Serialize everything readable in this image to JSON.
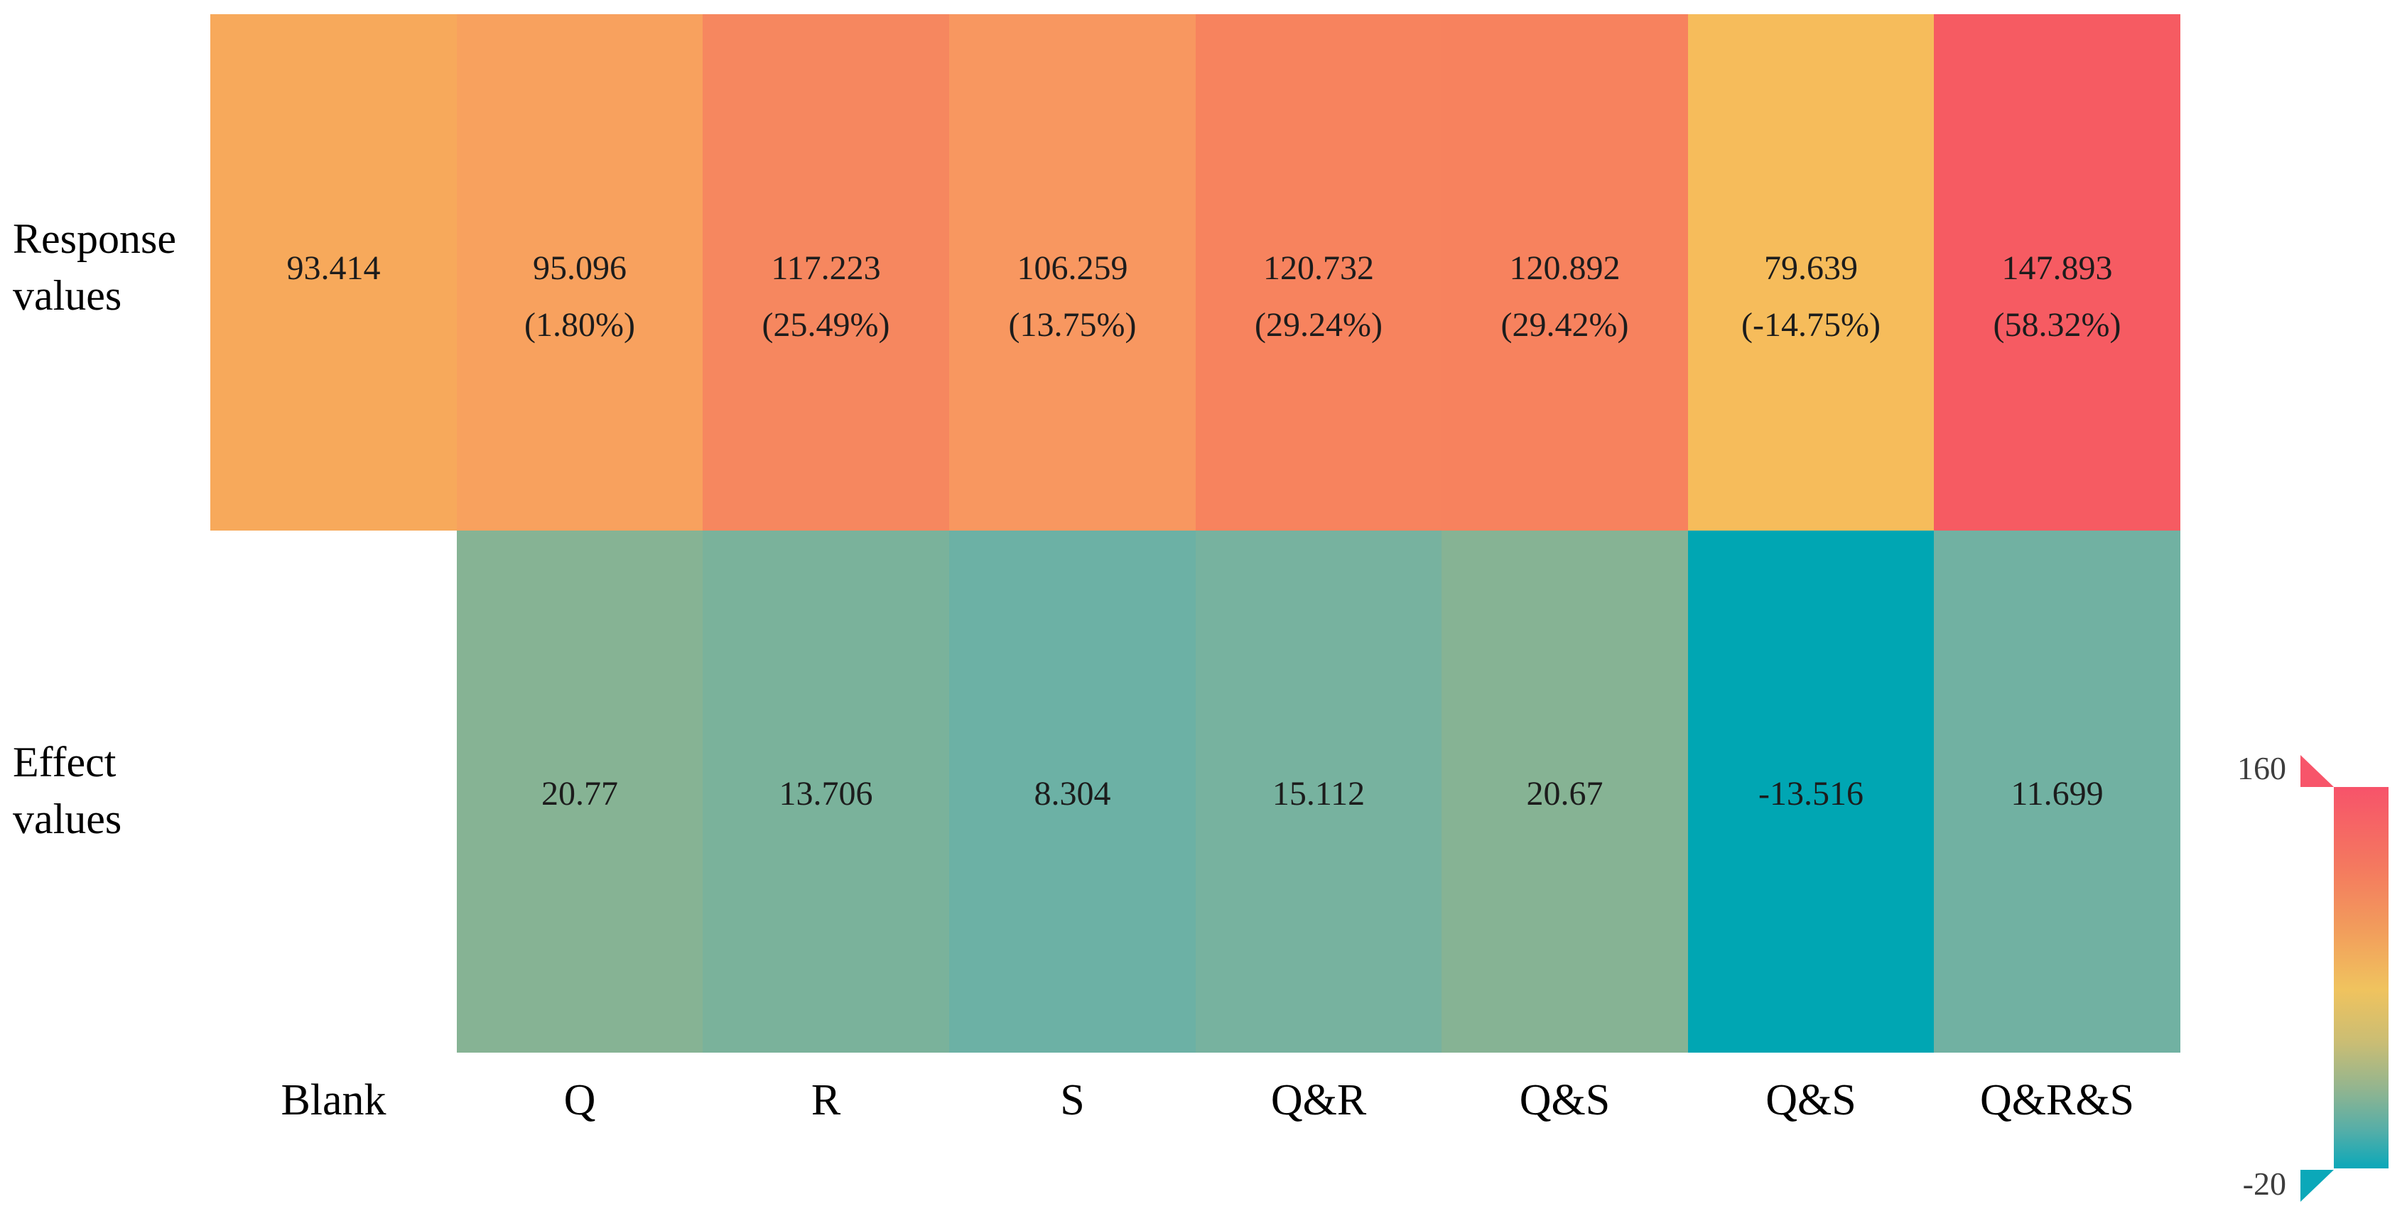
{
  "figure": {
    "background": "#ffffff",
    "text_color": "#1c1c1c"
  },
  "chart_data": {
    "type": "heatmap",
    "x_categories": [
      "Blank",
      "Q",
      "R",
      "S",
      "Q&R",
      "Q&S",
      "Q&S",
      "Q&R&S"
    ],
    "y_categories": [
      "Response values",
      "Effect values"
    ],
    "y_label_lines": [
      [
        "Response",
        "values"
      ],
      [
        "Effect",
        "values"
      ]
    ],
    "color_scale": {
      "min": -20,
      "max": 160
    },
    "series": [
      {
        "name": "Response values",
        "values": [
          93.414,
          95.096,
          117.223,
          106.259,
          120.732,
          120.892,
          79.639,
          147.893
        ],
        "value_labels": [
          "93.414",
          "95.096",
          "117.223",
          "106.259",
          "120.732",
          "120.892",
          "79.639",
          "147.893"
        ],
        "pct_labels": [
          null,
          "(1.80%)",
          "(25.49%)",
          "(13.75%)",
          "(29.24%)",
          "(29.42%)",
          "(-14.75%)",
          "(58.32%)"
        ],
        "cell_colors": [
          "#f7a95b",
          "#f8a15e",
          "#f6875f",
          "#f89760",
          "#f7835e",
          "#f7825e",
          "#f6bc5b",
          "#f65b62"
        ]
      },
      {
        "name": "Effect values",
        "values": [
          null,
          20.77,
          13.706,
          8.304,
          15.112,
          20.67,
          -13.516,
          11.699
        ],
        "value_labels": [
          null,
          "20.77",
          "13.706",
          "8.304",
          "15.112",
          "20.67",
          "-13.516",
          "11.699"
        ],
        "pct_labels": [
          null,
          null,
          null,
          null,
          null,
          null,
          null,
          null
        ],
        "cell_colors": [
          null,
          "#86b394",
          "#7ab29b",
          "#6cb1a5",
          "#77b29f",
          "#86b394",
          "#00a6b3",
          "#71b1a2"
        ]
      }
    ],
    "colorbar": {
      "max_label": "160",
      "min_label": "-20",
      "label_color": "#3d3d3d",
      "max_marker_color": "#f7556a",
      "min_marker_color": "#0ba8b9",
      "gradient_stops_top_to_bottom": [
        {
          "pos": 0,
          "color": "#f7536a"
        },
        {
          "pos": 21,
          "color": "#f4795f"
        },
        {
          "pos": 38,
          "color": "#f29e5c"
        },
        {
          "pos": 53,
          "color": "#f0c35e"
        },
        {
          "pos": 67,
          "color": "#cabd74"
        },
        {
          "pos": 79,
          "color": "#93b58f"
        },
        {
          "pos": 90,
          "color": "#55aea8"
        },
        {
          "pos": 100,
          "color": "#0ba8b9"
        }
      ]
    }
  }
}
